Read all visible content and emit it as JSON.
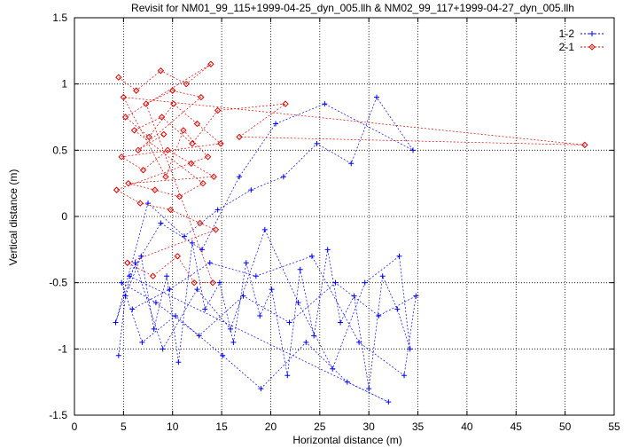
{
  "chart_data": {
    "type": "scatter",
    "title": "Revisit for NM01_99_115+1999-04-25_dyn_005.llh & NM02_99_117+1999-04-27_dyn_005.llh",
    "xlabel": "Horizontal distance (m)",
    "ylabel": "Vertical distance (m)",
    "xlim": [
      0,
      55
    ],
    "ylim": [
      -1.5,
      1.5
    ],
    "x_ticks": [
      0,
      5,
      10,
      15,
      20,
      25,
      30,
      35,
      40,
      45,
      50,
      55
    ],
    "y_ticks": [
      -1.5,
      -1,
      -0.5,
      0,
      0.5,
      1,
      1.5
    ],
    "x_tick_labels": [
      "0",
      "5",
      "10",
      "15",
      "20",
      "25",
      "30",
      "35",
      "40",
      "45",
      "50",
      "55"
    ],
    "y_tick_labels": [
      "-1.5",
      "-1",
      "-0.5",
      "0",
      "0.5",
      "1",
      "1.5"
    ],
    "grid": true,
    "legend": "top-right",
    "series": [
      {
        "name": "1-2",
        "color": "#0000ff",
        "marker": "plus",
        "line": "dashed",
        "points": [
          [
            4.5,
            -1.05
          ],
          [
            5.2,
            -0.6
          ],
          [
            6.8,
            -0.3
          ],
          [
            8.1,
            -0.85
          ],
          [
            9.4,
            -0.45
          ],
          [
            10.6,
            -1.1
          ],
          [
            12.0,
            -0.2
          ],
          [
            13.3,
            -0.7
          ],
          [
            14.8,
            -0.5
          ],
          [
            16.2,
            -0.95
          ],
          [
            17.5,
            -0.35
          ],
          [
            18.9,
            -0.75
          ],
          [
            20.1,
            -0.55
          ],
          [
            21.7,
            -1.2
          ],
          [
            23.0,
            -0.4
          ],
          [
            24.4,
            -0.9
          ],
          [
            25.8,
            -0.25
          ],
          [
            27.1,
            -0.8
          ],
          [
            28.5,
            -0.6
          ],
          [
            30.0,
            -1.3
          ],
          [
            31.4,
            -0.45
          ],
          [
            32.9,
            -0.7
          ],
          [
            34.2,
            -1.0
          ],
          [
            33.1,
            -0.3
          ],
          [
            29.6,
            -0.5
          ],
          [
            26.3,
            -1.15
          ],
          [
            22.8,
            -0.65
          ],
          [
            19.4,
            -0.1
          ],
          [
            15.9,
            -0.85
          ],
          [
            12.5,
            -0.55
          ],
          [
            9.0,
            -1.0
          ],
          [
            6.2,
            -0.35
          ],
          [
            4.2,
            -0.8
          ],
          [
            7.5,
            0.1
          ],
          [
            11.2,
            -0.15
          ],
          [
            14.6,
            0.05
          ],
          [
            18.0,
            0.2
          ],
          [
            21.3,
            0.3
          ],
          [
            24.7,
            0.55
          ],
          [
            28.2,
            0.4
          ],
          [
            30.8,
            0.9
          ],
          [
            34.5,
            0.5
          ],
          [
            25.5,
            0.85
          ],
          [
            20.5,
            0.7
          ],
          [
            16.8,
            0.3
          ],
          [
            13.0,
            -0.25
          ],
          [
            8.8,
            -0.05
          ],
          [
            5.6,
            -0.45
          ],
          [
            32.0,
            -1.4
          ],
          [
            27.8,
            -1.25
          ],
          [
            23.6,
            -0.95
          ],
          [
            19.0,
            -1.3
          ],
          [
            15.1,
            -1.05
          ],
          [
            10.3,
            -0.75
          ],
          [
            6.9,
            -0.95
          ],
          [
            4.8,
            -0.5
          ],
          [
            8.3,
            -0.65
          ],
          [
            12.7,
            -0.9
          ],
          [
            17.2,
            -0.6
          ],
          [
            21.9,
            -0.8
          ],
          [
            26.6,
            -0.5
          ],
          [
            31.0,
            -0.75
          ],
          [
            34.8,
            -0.6
          ],
          [
            33.6,
            -1.2
          ],
          [
            29.0,
            -0.95
          ],
          [
            24.2,
            -0.3
          ],
          [
            18.5,
            -0.45
          ],
          [
            13.8,
            -0.35
          ],
          [
            9.7,
            -0.55
          ],
          [
            5.9,
            -0.7
          ]
        ]
      },
      {
        "name": "2-1",
        "color": "#dd0000",
        "marker": "diamond",
        "line": "dashed",
        "points": [
          [
            4.5,
            1.05
          ],
          [
            6.3,
            0.95
          ],
          [
            8.8,
            1.1
          ],
          [
            11.4,
            1.0
          ],
          [
            13.9,
            1.15
          ],
          [
            5.2,
            0.75
          ],
          [
            7.6,
            0.6
          ],
          [
            10.1,
            0.85
          ],
          [
            12.5,
            0.7
          ],
          [
            14.9,
            0.55
          ],
          [
            4.8,
            0.45
          ],
          [
            7.0,
            0.35
          ],
          [
            9.5,
            0.5
          ],
          [
            11.9,
            0.4
          ],
          [
            14.2,
            0.3
          ],
          [
            5.5,
            0.25
          ],
          [
            8.2,
            0.2
          ],
          [
            10.7,
            0.15
          ],
          [
            13.1,
            0.25
          ],
          [
            6.1,
            0.65
          ],
          [
            8.9,
            0.75
          ],
          [
            12.0,
            0.55
          ],
          [
            14.6,
            0.8
          ],
          [
            21.5,
            0.85
          ],
          [
            16.8,
            0.6
          ],
          [
            52.0,
            0.54
          ],
          [
            5.0,
            0.9
          ],
          [
            9.3,
            0.3
          ],
          [
            11.1,
            0.65
          ],
          [
            13.6,
            0.45
          ],
          [
            4.3,
            0.2
          ],
          [
            6.7,
            0.1
          ],
          [
            9.8,
            0.05
          ],
          [
            12.8,
            -0.05
          ],
          [
            14.4,
            -0.1
          ],
          [
            5.4,
            -0.35
          ],
          [
            8.0,
            -0.45
          ],
          [
            10.5,
            -0.3
          ],
          [
            12.2,
            -0.5
          ],
          [
            14.1,
            -0.5
          ],
          [
            7.3,
            0.85
          ],
          [
            10.0,
            0.95
          ],
          [
            12.9,
            0.9
          ],
          [
            6.5,
            0.5
          ],
          [
            9.1,
            0.62
          ]
        ]
      }
    ]
  }
}
